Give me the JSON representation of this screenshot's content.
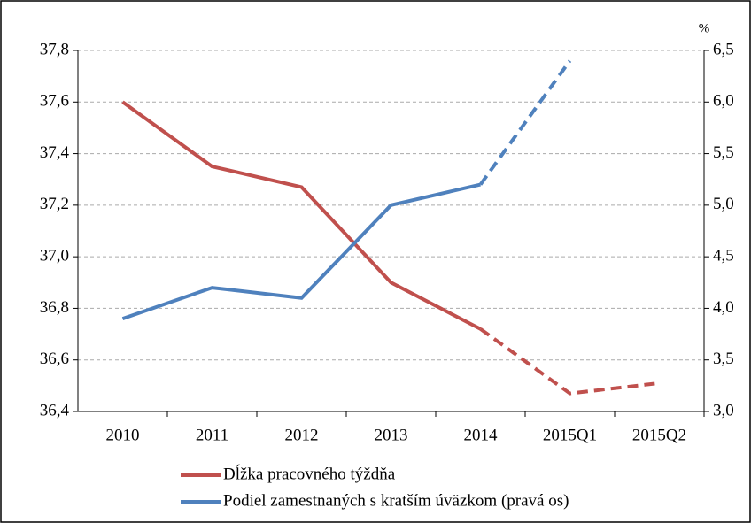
{
  "chart_data": {
    "type": "line",
    "categories": [
      "2010",
      "2011",
      "2012",
      "2013",
      "2014",
      "2015Q1",
      "2015Q2"
    ],
    "series": [
      {
        "name": "Dĺžka pracovného týždňa",
        "color": "#c0504d",
        "dash_from": 4,
        "values": [
          37.6,
          37.35,
          37.27,
          36.9,
          36.72,
          36.47,
          36.51
        ]
      },
      {
        "name": "Podiel zamestnaných s kratším úväzkom (pravá os)",
        "color": "#4f81bd",
        "axis": "y2",
        "dash_from": 4,
        "values": [
          3.9,
          4.2,
          4.1,
          5.0,
          5.2,
          6.4,
          null
        ]
      }
    ],
    "ylim": [
      36.4,
      37.8
    ],
    "yticks": [
      {
        "value": 36.4,
        "label": "36,4"
      },
      {
        "value": 36.6,
        "label": "36,6"
      },
      {
        "value": 36.8,
        "label": "36,8"
      },
      {
        "value": 37.0,
        "label": "37,0"
      },
      {
        "value": 37.2,
        "label": "37,2"
      },
      {
        "value": 37.4,
        "label": "37,4"
      },
      {
        "value": 37.6,
        "label": "37,6"
      },
      {
        "value": 37.8,
        "label": "37,8"
      }
    ],
    "y2label": "%",
    "y2lim": [
      3.0,
      6.5
    ],
    "y2ticks": [
      {
        "value": 3.0,
        "label": "3,0"
      },
      {
        "value": 3.5,
        "label": "3,5"
      },
      {
        "value": 4.0,
        "label": "4,0"
      },
      {
        "value": 4.5,
        "label": "4,5"
      },
      {
        "value": 5.0,
        "label": "5,0"
      },
      {
        "value": 5.5,
        "label": "5,5"
      },
      {
        "value": 6.0,
        "label": "6,0"
      },
      {
        "value": 6.5,
        "label": "6,5"
      }
    ],
    "grid": true
  }
}
